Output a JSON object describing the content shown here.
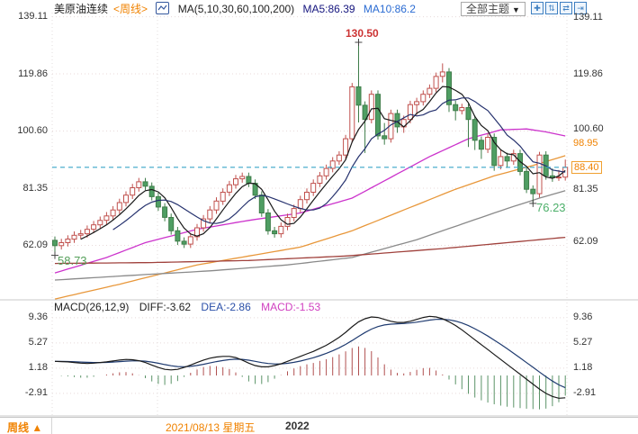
{
  "header": {
    "symbol": "美原油连续",
    "period_tag": "<周线>",
    "ma_label": "MA(5,10,30,60,100,200)",
    "ma5": "MA5:86.39",
    "ma10": "MA10:86.2",
    "theme_button": "全部主题",
    "theme_caret": "▼",
    "icons": [
      {
        "name": "crosshair-move-icon",
        "glyph": "✚"
      },
      {
        "name": "scale-y-axis-icon",
        "glyph": "⇅"
      },
      {
        "name": "scale-x-axis-icon",
        "glyph": "⇄"
      },
      {
        "name": "shift-right-icon",
        "glyph": "⇥"
      }
    ]
  },
  "price_axis": {
    "left": [
      "139.11",
      "119.86",
      "100.60",
      "81.35",
      "62.09"
    ],
    "right": [
      "139.11",
      "119.86",
      "100.60",
      "81.35",
      "62.09"
    ],
    "ma_value": "98.95",
    "last_price": "88.40"
  },
  "macd_axis": [
    "9.36",
    "5.27",
    "1.18",
    "-2.91"
  ],
  "macd_header": {
    "label": "MACD(26,12,9)",
    "diff": "DIFF:-3.62",
    "dea": "DEA:-2.86",
    "macd": "MACD:-1.53"
  },
  "annotations": {
    "high": "130.50",
    "low_left": "58.73",
    "low_right": "76.23"
  },
  "footer": {
    "period": "周线",
    "arrow": "▲",
    "date": "2021/08/13 星期五",
    "year": "2022"
  },
  "colors": {
    "up": "#c0504d",
    "down": "#4f9e63",
    "down_stroke": "#3f7d4a",
    "ma5": "#1a1a1a",
    "ma10": "#26326e",
    "ma_magenta": "#cc33cc",
    "ma_orange": "#e8973a",
    "ma_gray": "#8a8a8a",
    "ma_darkred": "#a0413c",
    "last_price_line": "#3aa6c9",
    "hist_up": "#b05050",
    "hist_down": "#5a9367",
    "grid": "#e8dada",
    "accent_orange": "#f08200"
  },
  "chart_data": {
    "type": "candlestick+macd",
    "title": "美原油连续 周线 (WTI crude weekly)",
    "price_gridlines": [
      139.11,
      119.86,
      100.6,
      81.35,
      62.09
    ],
    "macd_gridlines": [
      9.36,
      5.27,
      1.18,
      -2.91
    ],
    "last_price": 88.4,
    "high_annotation": {
      "index": 47,
      "price": 130.5
    },
    "low_annotation_left": {
      "index": 0,
      "price": 58.73
    },
    "low_annotation_right": {
      "index": 74,
      "price": 76.23
    },
    "candles": [
      [
        63.8,
        65.1,
        58.73,
        62.0
      ],
      [
        62.0,
        64.3,
        60.7,
        63.0
      ],
      [
        63.0,
        65.5,
        61.7,
        64.2
      ],
      [
        64.2,
        66.8,
        62.9,
        65.5
      ],
      [
        65.5,
        67.3,
        64.2,
        66.0
      ],
      [
        66.0,
        68.8,
        64.7,
        67.5
      ],
      [
        67.5,
        70.3,
        66.2,
        69.0
      ],
      [
        69.0,
        71.8,
        67.7,
        70.5
      ],
      [
        70.5,
        73.3,
        69.2,
        72.0
      ],
      [
        72.0,
        75.3,
        70.7,
        74.0
      ],
      [
        74.0,
        77.8,
        72.7,
        76.5
      ],
      [
        76.5,
        80.3,
        75.2,
        79.0
      ],
      [
        79.0,
        82.8,
        77.7,
        81.5
      ],
      [
        81.5,
        84.8,
        80.2,
        83.5
      ],
      [
        83.5,
        84.8,
        80.7,
        82.0
      ],
      [
        82.0,
        83.3,
        77.2,
        78.5
      ],
      [
        78.5,
        79.8,
        73.7,
        75.0
      ],
      [
        75.0,
        76.3,
        70.2,
        71.5
      ],
      [
        71.5,
        72.8,
        65.7,
        67.0
      ],
      [
        67.0,
        68.3,
        62.2,
        63.5
      ],
      [
        63.5,
        64.8,
        61.2,
        62.5
      ],
      [
        62.5,
        66.3,
        61.2,
        65.0
      ],
      [
        65.0,
        69.3,
        63.7,
        68.0
      ],
      [
        68.0,
        72.3,
        66.7,
        71.0
      ],
      [
        71.0,
        75.3,
        69.7,
        74.0
      ],
      [
        74.0,
        78.3,
        72.7,
        77.0
      ],
      [
        77.0,
        81.3,
        75.7,
        80.0
      ],
      [
        80.0,
        83.8,
        78.7,
        82.5
      ],
      [
        82.5,
        85.8,
        81.2,
        84.5
      ],
      [
        84.5,
        86.6,
        83.2,
        85.3
      ],
      [
        85.3,
        86.6,
        81.7,
        83.0
      ],
      [
        83.0,
        84.3,
        77.7,
        79.0
      ],
      [
        79.0,
        80.3,
        71.7,
        73.0
      ],
      [
        73.0,
        74.3,
        65.7,
        67.0
      ],
      [
        67.0,
        68.3,
        64.7,
        66.0
      ],
      [
        66.0,
        69.8,
        64.7,
        68.5
      ],
      [
        68.5,
        72.8,
        67.2,
        71.5
      ],
      [
        71.5,
        75.8,
        70.2,
        74.5
      ],
      [
        74.5,
        78.8,
        73.2,
        77.5
      ],
      [
        77.5,
        81.3,
        76.2,
        80.0
      ],
      [
        80.0,
        84.3,
        78.7,
        83.0
      ],
      [
        83.0,
        86.8,
        81.7,
        85.5
      ],
      [
        85.5,
        89.3,
        84.2,
        88.0
      ],
      [
        88.0,
        91.8,
        86.7,
        90.5
      ],
      [
        90.5,
        93.8,
        89.2,
        92.5
      ],
      [
        92.5,
        99.3,
        91.2,
        98.0
      ],
      [
        98.0,
        116.8,
        96.7,
        115.5
      ],
      [
        115.5,
        130.5,
        103.5,
        109.3
      ],
      [
        109.3,
        110.6,
        93.2,
        104.5
      ],
      [
        104.5,
        114.3,
        103.2,
        113.0
      ],
      [
        113.0,
        114.3,
        97.7,
        99.0
      ],
      [
        99.0,
        103.3,
        96.0,
        98.0
      ],
      [
        98.0,
        107.8,
        96.7,
        106.5
      ],
      [
        106.5,
        107.8,
        100.0,
        102.0
      ],
      [
        102.0,
        105.8,
        100.0,
        104.5
      ],
      [
        104.5,
        110.8,
        103.2,
        109.5
      ],
      [
        109.5,
        111.8,
        106.0,
        110.5
      ],
      [
        110.5,
        114.3,
        109.2,
        113.0
      ],
      [
        113.0,
        116.3,
        111.7,
        115.0
      ],
      [
        115.0,
        120.3,
        113.7,
        119.0
      ],
      [
        119.0,
        123.4,
        117.0,
        120.5
      ],
      [
        120.5,
        121.8,
        107.0,
        109.5
      ],
      [
        109.5,
        110.8,
        104.2,
        107.5
      ],
      [
        107.5,
        109.8,
        106.2,
        108.5
      ],
      [
        108.5,
        109.8,
        95.2,
        104.5
      ],
      [
        104.5,
        105.8,
        94.2,
        97.5
      ],
      [
        97.5,
        98.8,
        91.2,
        94.5
      ],
      [
        94.5,
        99.8,
        93.2,
        98.5
      ],
      [
        98.5,
        99.8,
        87.2,
        89.0
      ],
      [
        89.0,
        94.3,
        87.7,
        92.0
      ],
      [
        92.0,
        93.3,
        88.2,
        90.5
      ],
      [
        90.5,
        94.3,
        89.2,
        93.0
      ],
      [
        93.0,
        94.3,
        85.7,
        87.0
      ],
      [
        87.0,
        88.3,
        79.7,
        81.0
      ],
      [
        81.0,
        82.3,
        76.23,
        79.5
      ],
      [
        79.5,
        93.6,
        78.2,
        92.5
      ],
      [
        92.5,
        93.8,
        84.2,
        85.5
      ],
      [
        85.5,
        88.0,
        83.5,
        84.9
      ],
      [
        84.9,
        87.5,
        83.8,
        85.1
      ],
      [
        85.1,
        91.0,
        83.9,
        88.4
      ]
    ],
    "overlays": [
      {
        "name": "MA60",
        "color": "#cc33cc",
        "points": [
          [
            0,
            52.8
          ],
          [
            8,
            58
          ],
          [
            14,
            63
          ],
          [
            22,
            67.5
          ],
          [
            30,
            70.5
          ],
          [
            38,
            73
          ],
          [
            46,
            78
          ],
          [
            52,
            85
          ],
          [
            58,
            92
          ],
          [
            64,
            98
          ],
          [
            69,
            101
          ],
          [
            73,
            101.3
          ],
          [
            76,
            100.3
          ],
          [
            79,
            98.95
          ]
        ]
      },
      {
        "name": "MA100",
        "color": "#e8973a",
        "points": [
          [
            0,
            44
          ],
          [
            10,
            49
          ],
          [
            22,
            55.5
          ],
          [
            30,
            58.5
          ],
          [
            38,
            61.5
          ],
          [
            46,
            67
          ],
          [
            54,
            74
          ],
          [
            62,
            81
          ],
          [
            68,
            85.5
          ],
          [
            74,
            89
          ],
          [
            79,
            92.3
          ]
        ]
      },
      {
        "name": "MA30",
        "color": "#8a8a8a",
        "points": [
          [
            0,
            50.4
          ],
          [
            12,
            52
          ],
          [
            24,
            53.5
          ],
          [
            36,
            55.5
          ],
          [
            46,
            58
          ],
          [
            56,
            64
          ],
          [
            64,
            70
          ],
          [
            70,
            74.5
          ],
          [
            75,
            78
          ],
          [
            79,
            80.5
          ]
        ]
      },
      {
        "name": "MA200",
        "color": "#a0413c",
        "points": [
          [
            0,
            56
          ],
          [
            15,
            56.3
          ],
          [
            30,
            57
          ],
          [
            45,
            58.5
          ],
          [
            60,
            61
          ],
          [
            70,
            63
          ],
          [
            79,
            64.8
          ]
        ]
      }
    ],
    "macd": {
      "diff_end": -3.62,
      "dea_end": -2.86,
      "hist_end": -1.53,
      "diff": [
        2.3,
        2.25,
        2.2,
        2.1,
        2.0,
        1.95,
        2.0,
        2.1,
        2.2,
        2.35,
        2.5,
        2.6,
        2.55,
        2.4,
        2.1,
        1.7,
        1.3,
        1.0,
        0.9,
        1.0,
        1.3,
        1.7,
        2.1,
        2.5,
        2.8,
        3.0,
        3.1,
        3.1,
        2.9,
        2.5,
        2.0,
        1.6,
        1.4,
        1.4,
        1.6,
        1.9,
        2.3,
        2.7,
        3.1,
        3.5,
        3.9,
        4.4,
        4.9,
        5.5,
        6.2,
        7.0,
        7.9,
        8.7,
        9.2,
        9.5,
        9.4,
        9.1,
        8.8,
        8.6,
        8.6,
        8.8,
        9.1,
        9.4,
        9.6,
        9.5,
        9.2,
        8.7,
        8.1,
        7.4,
        6.6,
        5.8,
        5.0,
        4.2,
        3.4,
        2.6,
        1.8,
        1.0,
        0.2,
        -0.6,
        -1.4,
        -2.2,
        -2.9,
        -3.4,
        -3.7,
        -3.62
      ]
    }
  }
}
